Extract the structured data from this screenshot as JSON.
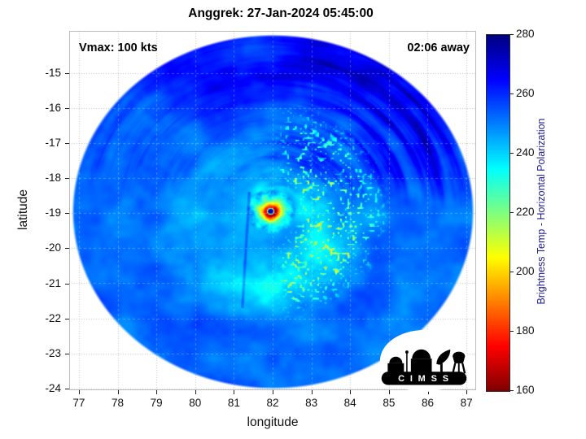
{
  "figure": {
    "background": "#ffffff"
  },
  "chart_data": {
    "type": "heatmap",
    "title": "Anggrek: 27-Jan-2024 05:45:00",
    "xlabel": "longitude",
    "ylabel": "latitude",
    "xlim": [
      76.75,
      87.25
    ],
    "ylim": [
      -24.05,
      -13.8
    ],
    "xticks": [
      77,
      78,
      79,
      80,
      81,
      82,
      83,
      84,
      85,
      86,
      87
    ],
    "yticks": [
      -15,
      -16,
      -17,
      -18,
      -19,
      -20,
      -21,
      -22,
      -23,
      -24
    ],
    "grid": true,
    "annotations": {
      "vmax_label": "Vmax: 100 kts",
      "eta_label": "02:06 away"
    },
    "colorbar": {
      "label": "Brightness Temp - Horizontal Polarization",
      "min": 160,
      "max": 280,
      "ticks": [
        280,
        260,
        240,
        220,
        200,
        180,
        160
      ],
      "colormap": "jet-reversed (280 K dark blue to 160 K dark red)"
    },
    "swath": {
      "center_lon": 82.0,
      "center_lat": -18.95,
      "radius_lon_deg": 5.15,
      "radius_lat_deg": 5.02
    },
    "storm": {
      "name": "Anggrek",
      "eye_lon": 81.95,
      "eye_lat": -18.95,
      "eye_tb_k": 276,
      "eyewall_min_tb_k": 165,
      "ocean_background_tb_k": 252
    }
  },
  "logo": {
    "name": "CIMSS",
    "text": "C I M S S"
  }
}
